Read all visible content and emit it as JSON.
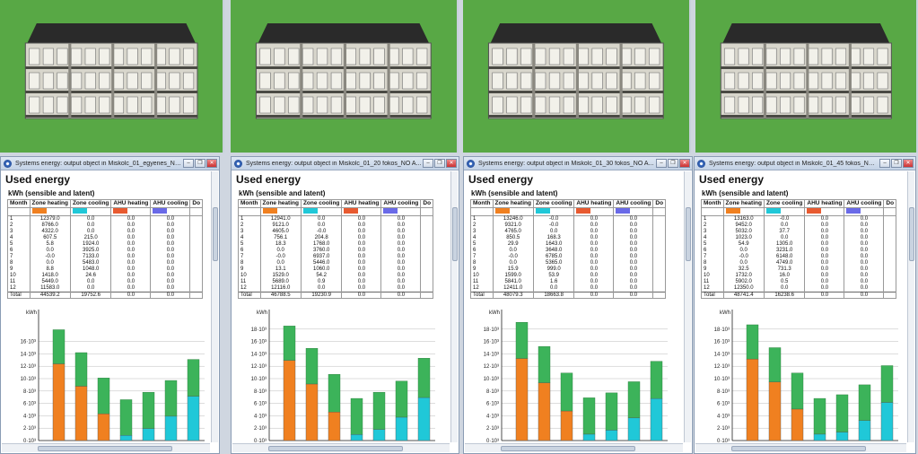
{
  "colors": {
    "heating": "#f08020",
    "cooling": "#20c8d8",
    "ahu_heating": "#e85a30",
    "ahu_cooling": "#6a6ae8",
    "total_bar": "#3cb35a",
    "grass": "#58a845"
  },
  "windows": [
    {
      "title": "Systems energy: output object in Miskolc_01_egyenes_NO A...",
      "heading": "Used energy",
      "subheading": "kWh (sensible and latent)",
      "columns": [
        "Month",
        "Zone heating",
        "Zone cooling",
        "AHU heating",
        "AHU cooling",
        "Do"
      ],
      "months": [
        "1",
        "2",
        "3",
        "4",
        "5",
        "6",
        "7",
        "8",
        "9",
        "10",
        "11",
        "12"
      ],
      "heating": [
        "12379.0",
        "8766.0",
        "4322.0",
        "607.5",
        "5.8",
        "0.0",
        "-0.0",
        "0.0",
        "8.8",
        "1418.0",
        "5449.0",
        "11583.0"
      ],
      "cooling": [
        "0.0",
        "0.0",
        "0.0",
        "215.0",
        "1924.0",
        "3925.0",
        "7133.0",
        "5483.0",
        "1048.0",
        "24.6",
        "0.0",
        "0.0"
      ],
      "ahu_heating": [
        "0.0",
        "0.0",
        "0.0",
        "0.0",
        "0.0",
        "0.0",
        "0.0",
        "0.0",
        "0.0",
        "0.0",
        "0.0",
        "0.0"
      ],
      "ahu_cooling": [
        "0.0",
        "0.0",
        "0.0",
        "0.0",
        "0.0",
        "0.0",
        "0.0",
        "0.0",
        "0.0",
        "0.0",
        "0.0",
        "0.0"
      ],
      "total_label": "Total",
      "total_heating": "44539.2",
      "total_cooling": "19752.6",
      "total_ahu_heating": "0.0",
      "total_ahu_cooling": "0.0"
    },
    {
      "title": "Systems energy: output object in Miskolc_01_20 fokos_NO A...",
      "heading": "Used energy",
      "subheading": "kWh (sensible and latent)",
      "columns": [
        "Month",
        "Zone heating",
        "Zone cooling",
        "AHU heating",
        "AHU cooling",
        "Do"
      ],
      "months": [
        "1",
        "2",
        "3",
        "4",
        "5",
        "6",
        "7",
        "8",
        "9",
        "10",
        "11",
        "12"
      ],
      "heating": [
        "12941.0",
        "9121.0",
        "4605.0",
        "756.1",
        "18.3",
        "0.0",
        "-0.0",
        "0.0",
        "13.1",
        "1529.0",
        "5689.0",
        "12116.0"
      ],
      "cooling": [
        "0.0",
        "0.0",
        "-0.0",
        "204.8",
        "1768.0",
        "3760.0",
        "6937.0",
        "5446.0",
        "1060.0",
        "54.2",
        "0.9",
        "0.0"
      ],
      "ahu_heating": [
        "0.0",
        "0.0",
        "0.0",
        "0.0",
        "0.0",
        "0.0",
        "0.0",
        "0.0",
        "0.0",
        "0.0",
        "0.0",
        "0.0"
      ],
      "ahu_cooling": [
        "0.0",
        "0.0",
        "0.0",
        "0.0",
        "0.0",
        "0.0",
        "0.0",
        "0.0",
        "0.0",
        "0.0",
        "0.0",
        "0.0"
      ],
      "total_label": "Total",
      "total_heating": "46788.5",
      "total_cooling": "19230.9",
      "total_ahu_heating": "0.0",
      "total_ahu_cooling": "0.0"
    },
    {
      "title": "Systems energy: output object in Miskolc_01_30 fokos_NO A...",
      "heading": "Used energy",
      "subheading": "kWh (sensible and latent)",
      "columns": [
        "Month",
        "Zone heating",
        "Zone cooling",
        "AHU heating",
        "AHU cooling",
        "Do"
      ],
      "months": [
        "1",
        "2",
        "3",
        "4",
        "5",
        "6",
        "7",
        "8",
        "9",
        "10",
        "11",
        "12"
      ],
      "heating": [
        "13246.0",
        "9321.0",
        "4765.0",
        "850.5",
        "29.9",
        "0.0",
        "-0.0",
        "0.0",
        "15.9",
        "1599.0",
        "5841.0",
        "12411.0"
      ],
      "cooling": [
        "-0.0",
        "-0.0",
        "0.0",
        "168.3",
        "1643.0",
        "3648.0",
        "6785.0",
        "5365.0",
        "999.0",
        "53.9",
        "1.6",
        "0.0"
      ],
      "ahu_heating": [
        "0.0",
        "0.0",
        "0.0",
        "0.0",
        "0.0",
        "0.0",
        "0.0",
        "0.0",
        "0.0",
        "0.0",
        "0.0",
        "0.0"
      ],
      "ahu_cooling": [
        "0.0",
        "0.0",
        "0.0",
        "0.0",
        "0.0",
        "0.0",
        "0.0",
        "0.0",
        "0.0",
        "0.0",
        "0.0",
        "0.0"
      ],
      "total_label": "Total",
      "total_heating": "48079.3",
      "total_cooling": "18663.8",
      "total_ahu_heating": "0.0",
      "total_ahu_cooling": "0.0"
    },
    {
      "title": "Systems energy: output object in Miskolc_01_45 fokos_NO ...",
      "heading": "Used energy",
      "subheading": "kWh (sensible and latent)",
      "columns": [
        "Month",
        "Zone heating",
        "Zone cooling",
        "AHU heating",
        "AHU cooling",
        "Do"
      ],
      "months": [
        "1",
        "2",
        "3",
        "4",
        "5",
        "6",
        "7",
        "8",
        "9",
        "10",
        "11",
        "12"
      ],
      "heating": [
        "13163.0",
        "9452.0",
        "5032.0",
        "1023.0",
        "54.9",
        "0.0",
        "-0.0",
        "0.0",
        "32.5",
        "1732.0",
        "5902.0",
        "12350.0"
      ],
      "cooling": [
        "-0.0",
        "0.0",
        "37.7",
        "0.0",
        "1305.0",
        "3231.0",
        "6148.0",
        "4749.0",
        "731.3",
        "16.0",
        "0.5",
        "0.0"
      ],
      "ahu_heating": [
        "0.0",
        "0.0",
        "0.0",
        "0.0",
        "0.0",
        "0.0",
        "0.0",
        "0.0",
        "0.0",
        "0.0",
        "0.0",
        "0.0"
      ],
      "ahu_cooling": [
        "0.0",
        "0.0",
        "0.0",
        "0.0",
        "0.0",
        "0.0",
        "0.0",
        "0.0",
        "0.0",
        "0.0",
        "0.0",
        "0.0"
      ],
      "total_label": "Total",
      "total_heating": "48741.4",
      "total_cooling": "16238.6",
      "total_ahu_heating": "0.0",
      "total_ahu_cooling": "0.0"
    }
  ],
  "chart_data": [
    {
      "type": "bar",
      "ylabel": "kWh",
      "categories": [
        "1",
        "2",
        "3",
        "4",
        "5",
        "6",
        "7"
      ],
      "ylim": [
        0,
        20000
      ],
      "yticks": [
        "0·10³",
        "2·10³",
        "4·10³",
        "6·10³",
        "8·10³",
        "10·10³",
        "12·10³",
        "14·10³",
        "16·10³"
      ],
      "series": [
        {
          "values": [
            12379,
            8766,
            4322,
            822,
            1930,
            3925,
            7133
          ]
        },
        {
          "values": [
            17900,
            14200,
            10100,
            6600,
            7800,
            9700,
            13100
          ]
        }
      ]
    },
    {
      "type": "bar",
      "ylabel": "kWh",
      "categories": [
        "1",
        "2",
        "3",
        "4",
        "5",
        "6",
        "7"
      ],
      "ylim": [
        0,
        20000
      ],
      "yticks": [
        "0·10³",
        "2·10³",
        "4·10³",
        "6·10³",
        "8·10³",
        "10·10³",
        "12·10³",
        "14·10³",
        "16·10³",
        "18·10³"
      ],
      "series": [
        {
          "values": [
            12941,
            9121,
            4605,
            961,
            1786,
            3760,
            6937
          ]
        },
        {
          "values": [
            18500,
            14900,
            10700,
            6800,
            7800,
            9600,
            13300
          ]
        }
      ]
    },
    {
      "type": "bar",
      "ylabel": "kWh",
      "categories": [
        "1",
        "2",
        "3",
        "4",
        "5",
        "6",
        "7"
      ],
      "ylim": [
        0,
        20000
      ],
      "yticks": [
        "0·10³",
        "2·10³",
        "4·10³",
        "6·10³",
        "8·10³",
        "10·10³",
        "12·10³",
        "14·10³",
        "16·10³",
        "18·10³"
      ],
      "series": [
        {
          "values": [
            13246,
            9321,
            4765,
            1019,
            1673,
            3648,
            6785
          ]
        },
        {
          "values": [
            19100,
            15200,
            10900,
            6900,
            7700,
            9500,
            12800
          ]
        }
      ]
    },
    {
      "type": "bar",
      "ylabel": "kWh",
      "categories": [
        "1",
        "2",
        "3",
        "4",
        "5",
        "6",
        "7"
      ],
      "ylim": [
        0,
        20000
      ],
      "yticks": [
        "0·10³",
        "2·10³",
        "4·10³",
        "6·10³",
        "8·10³",
        "10·10³",
        "12·10³",
        "14·10³",
        "16·10³",
        "18·10³"
      ],
      "series": [
        {
          "values": [
            13163,
            9452,
            5070,
            1023,
            1360,
            3231,
            6148
          ]
        },
        {
          "values": [
            18700,
            15000,
            10900,
            6800,
            7400,
            9000,
            12100
          ]
        }
      ]
    }
  ]
}
